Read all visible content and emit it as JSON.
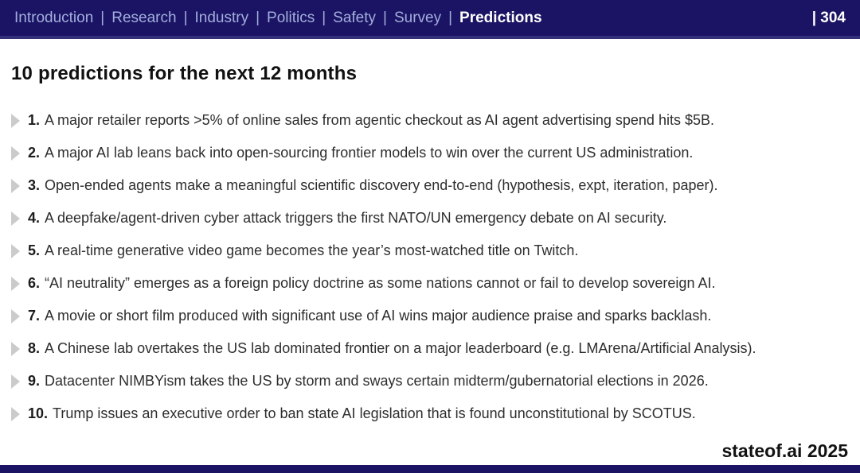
{
  "header": {
    "nav_items": [
      {
        "label": "Introduction",
        "active": false
      },
      {
        "label": "Research",
        "active": false
      },
      {
        "label": "Industry",
        "active": false
      },
      {
        "label": "Politics",
        "active": false
      },
      {
        "label": "Safety",
        "active": false
      },
      {
        "label": "Survey",
        "active": false
      },
      {
        "label": "Predictions",
        "active": true
      }
    ],
    "separator": "|",
    "page_number": "| 304"
  },
  "title": "10 predictions for the next 12 months",
  "predictions": [
    {
      "number": "1.",
      "text": "A major retailer reports >5% of online sales from agentic checkout as AI agent advertising spend hits $5B."
    },
    {
      "number": "2.",
      "text": "A major AI lab leans back into open-sourcing frontier models to win over the current US administration."
    },
    {
      "number": "3.",
      "text": "Open-ended agents make a meaningful scientific discovery end-to-end (hypothesis, expt, iteration, paper)."
    },
    {
      "number": "4.",
      "text": "A deepfake/agent-driven cyber attack triggers the first NATO/UN emergency debate on AI security."
    },
    {
      "number": "5.",
      "text": "A real-time generative video game becomes the year’s most-watched title on Twitch."
    },
    {
      "number": "6.",
      "text": "“AI neutrality” emerges as a foreign policy doctrine as some nations cannot or fail to develop sovereign AI."
    },
    {
      "number": "7.",
      "text": "A movie or short film produced with significant use of AI wins major audience praise and sparks backlash."
    },
    {
      "number": "8.",
      "text": "A Chinese lab overtakes the US lab dominated frontier on a major leaderboard (e.g. LMArena/Artificial Analysis)."
    },
    {
      "number": "9.",
      "text": "Datacenter NIMBYism takes the US by storm and sways certain midterm/gubernatorial elections in 2026."
    },
    {
      "number": "10.",
      "text": "Trump issues an executive order to ban state AI legislation that is found unconstitutional by SCOTUS."
    }
  ],
  "footer": {
    "brand": "stateof.ai 2025"
  },
  "icons": {
    "bullet": "chevron-right-icon"
  },
  "colors": {
    "header_bg": "#1b1464",
    "header_border": "#35307c",
    "nav_inactive": "#a2aedd",
    "nav_active": "#ffffff",
    "bullet_gray": "#cbcbcb"
  }
}
